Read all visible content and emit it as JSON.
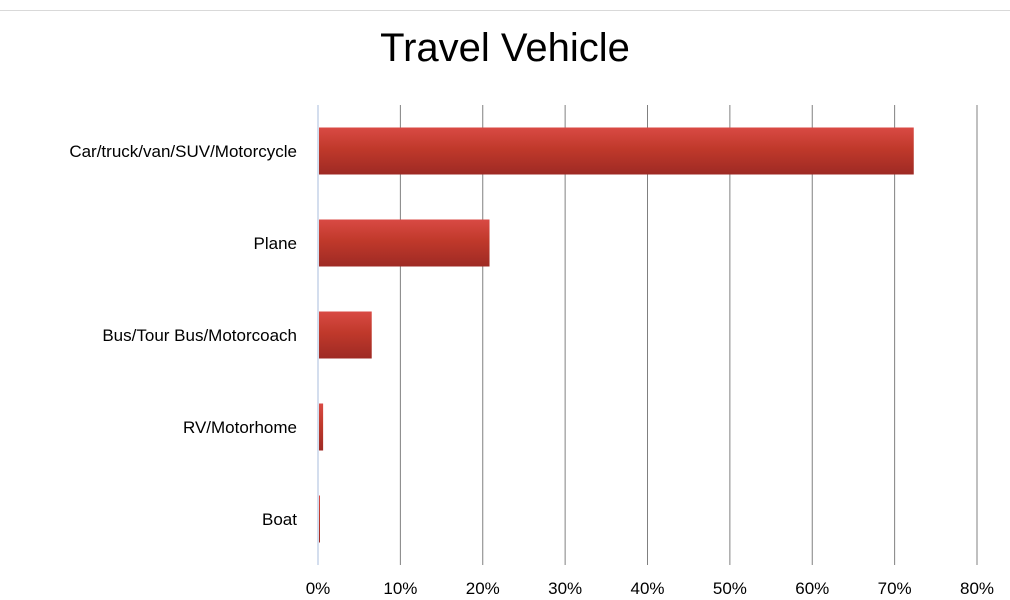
{
  "chart_data": {
    "type": "bar",
    "orientation": "horizontal",
    "title": "Travel Vehicle",
    "categories": [
      "Car/truck/van/SUV/Motorcycle",
      "Plane",
      "Bus/Tour Bus/Motorcoach",
      "RV/Motorhome",
      "Boat"
    ],
    "values": [
      72.2,
      20.7,
      6.4,
      0.5,
      0.1
    ],
    "xlim": [
      0,
      80
    ],
    "xticks": [
      "0%",
      "10%",
      "20%",
      "30%",
      "40%",
      "50%",
      "60%",
      "70%",
      "80%"
    ],
    "grid": true,
    "legend": "none",
    "bar_color": "#c0392b",
    "bar_color_light": "#d94a44",
    "bar_color_dark": "#9e2a24",
    "grid_color": "#808080",
    "axis_color": "#c5d3e8"
  }
}
